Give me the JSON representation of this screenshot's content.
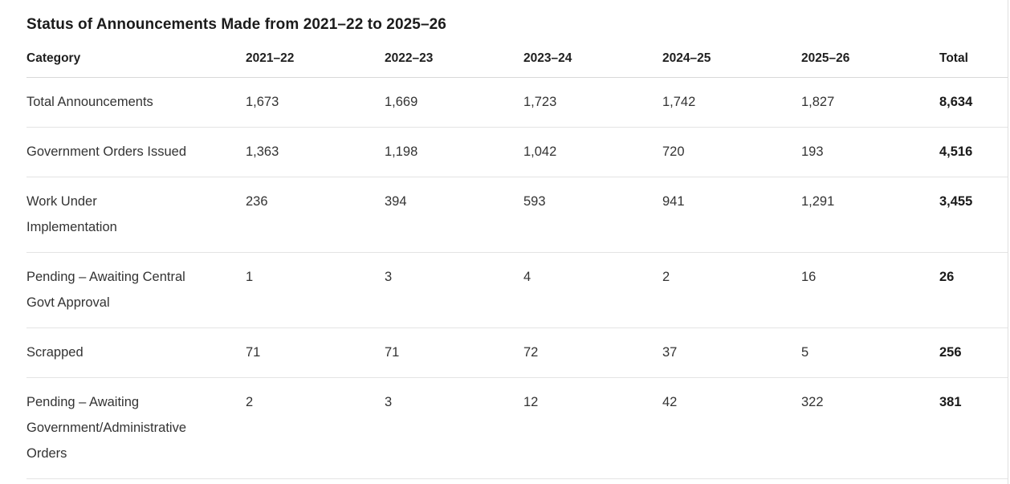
{
  "page": {
    "title": "Status of Announcements Made from 2021–22 to 2025–26"
  },
  "table": {
    "header": [
      "Category",
      "2021–22",
      "2022–23",
      "2023–24",
      "2024–25",
      "2025–26",
      "Total"
    ],
    "rows": [
      {
        "category": "Total Announcements",
        "v0": "1,673",
        "v1": "1,669",
        "v2": "1,723",
        "v3": "1,742",
        "v4": "1,827",
        "total": "8,634"
      },
      {
        "category": "Government Orders Issued",
        "v0": "1,363",
        "v1": "1,198",
        "v2": "1,042",
        "v3": "720",
        "v4": "193",
        "total": "4,516"
      },
      {
        "category": "Work Under\nImplementation",
        "v0": "236",
        "v1": "394",
        "v2": "593",
        "v3": "941",
        "v4": "1,291",
        "total": "3,455"
      },
      {
        "category": "Pending – Awaiting Central\nGovt Approval",
        "v0": "1",
        "v1": "3",
        "v2": "4",
        "v3": "2",
        "v4": "16",
        "total": "26"
      },
      {
        "category": "Scrapped",
        "v0": "71",
        "v1": "71",
        "v2": "72",
        "v3": "37",
        "v4": "5",
        "total": "256"
      },
      {
        "category": "Pending – Awaiting\nGovernment/Administrative\nOrders",
        "v0": "2",
        "v1": "3",
        "v2": "12",
        "v3": "42",
        "v4": "322",
        "total": "381"
      }
    ]
  },
  "chart_data": {
    "type": "table",
    "title": "Status of Announcements Made from 2021–22 to 2025–26",
    "columns": [
      "Category",
      "2021–22",
      "2022–23",
      "2023–24",
      "2024–25",
      "2025–26",
      "Total"
    ],
    "value_columns": [
      "2021–22",
      "2022–23",
      "2023–24",
      "2024–25",
      "2025–26"
    ],
    "rows": [
      {
        "category": "Total Announcements",
        "values": [
          1673,
          1669,
          1723,
          1742,
          1827
        ],
        "total": 8634
      },
      {
        "category": "Government Orders Issued",
        "values": [
          1363,
          1198,
          1042,
          720,
          193
        ],
        "total": 4516
      },
      {
        "category": "Work Under Implementation",
        "values": [
          236,
          394,
          593,
          941,
          1291
        ],
        "total": 3455
      },
      {
        "category": "Pending – Awaiting Central Govt Approval",
        "values": [
          1,
          3,
          4,
          2,
          16
        ],
        "total": 26
      },
      {
        "category": "Scrapped",
        "values": [
          71,
          71,
          72,
          37,
          5
        ],
        "total": 256
      },
      {
        "category": "Pending – Awaiting Government/Administrative Orders",
        "values": [
          2,
          3,
          12,
          42,
          322
        ],
        "total": 381
      }
    ],
    "layout": {
      "grid": "horizontal-row-separators",
      "alignment": "left",
      "totals_bold": true
    }
  }
}
